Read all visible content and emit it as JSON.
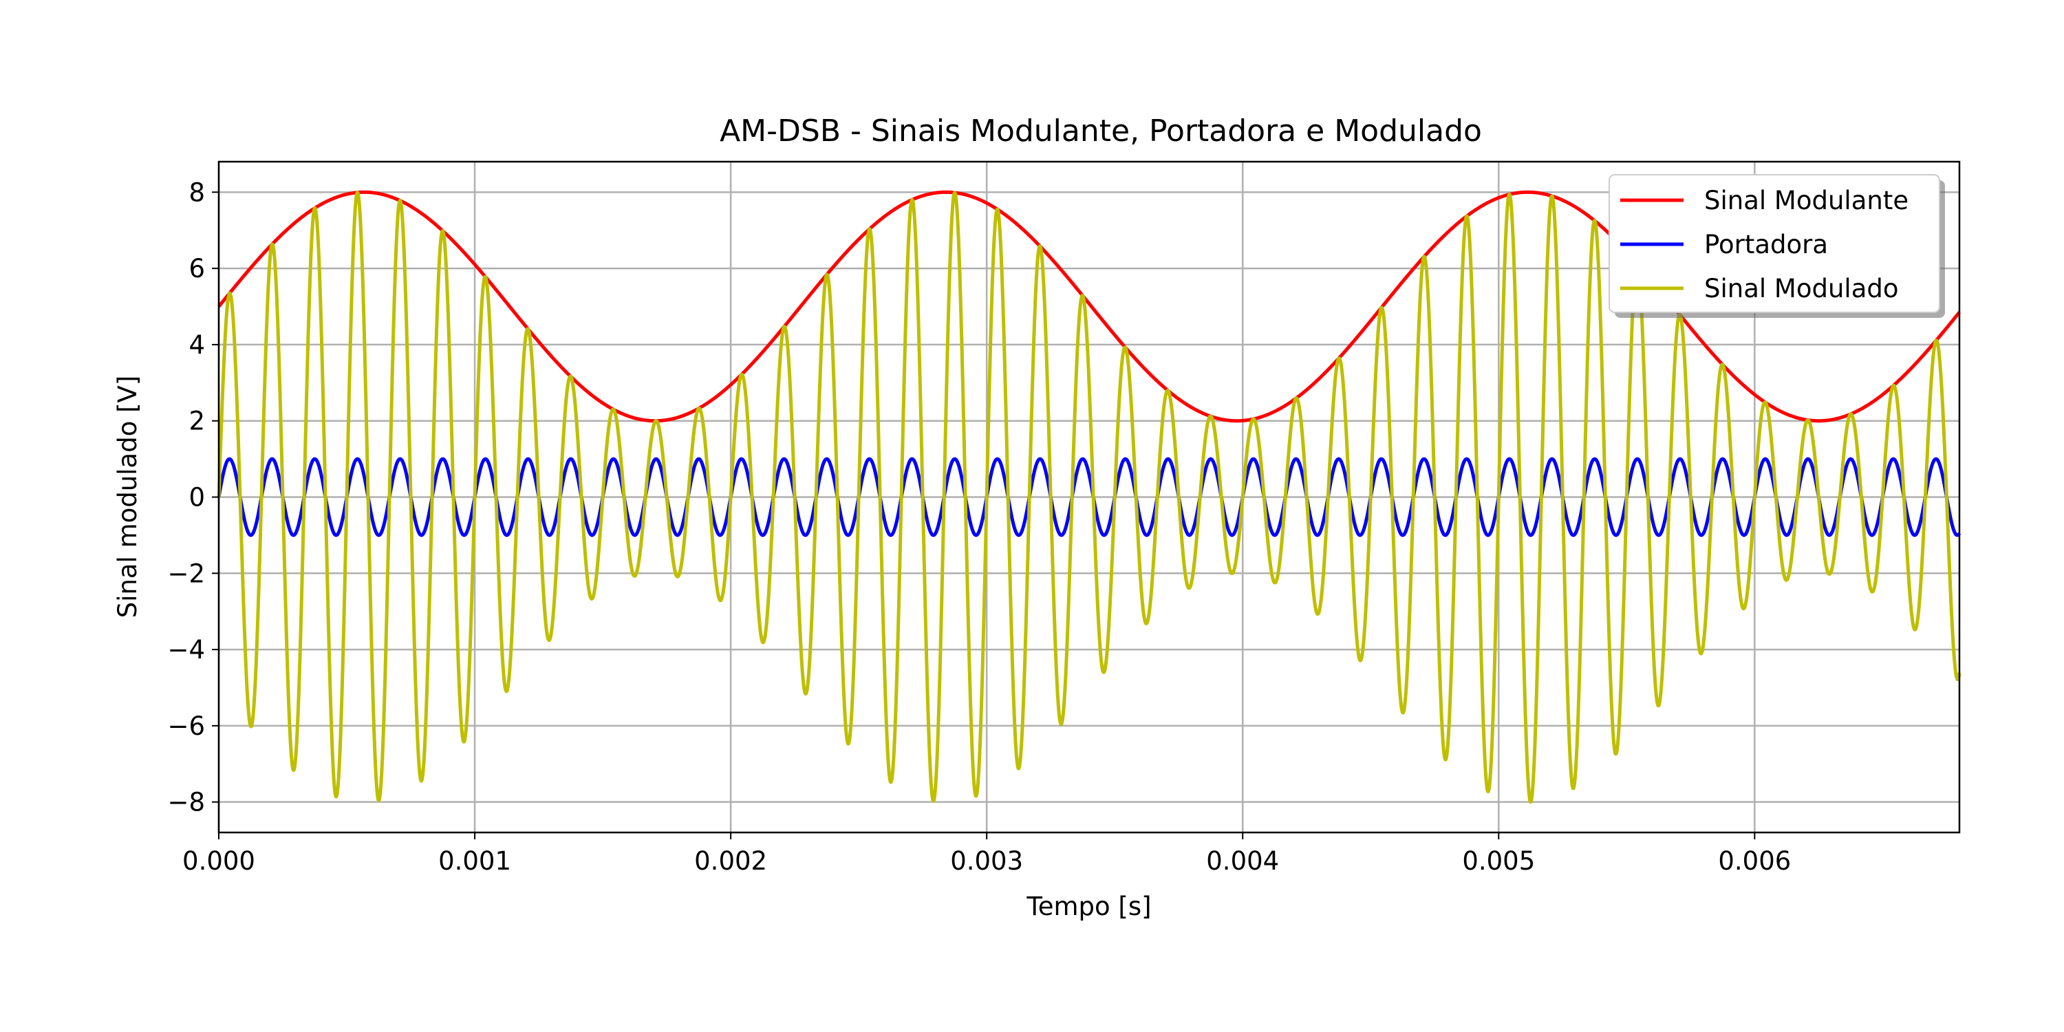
{
  "chart_data": {
    "type": "line",
    "title": "AM-DSB - Sinais Modulante, Portadora e Modulado",
    "xlabel": "Tempo [s]",
    "ylabel": "Sinal modulado [V]",
    "xlim": [
      0,
      0.0068
    ],
    "ylim": [
      -8.8,
      8.8
    ],
    "x_ticks": [
      0.0,
      0.001,
      0.002,
      0.003,
      0.004,
      0.005,
      0.006
    ],
    "x_tick_labels": [
      "0.000",
      "0.001",
      "0.002",
      "0.003",
      "0.004",
      "0.005",
      "0.006"
    ],
    "y_ticks": [
      -8,
      -6,
      -4,
      -2,
      0,
      2,
      4,
      6,
      8
    ],
    "y_tick_labels": [
      "−8",
      "−6",
      "−4",
      "−2",
      "0",
      "2",
      "4",
      "6",
      "8"
    ],
    "grid": true,
    "legend_position": "top-right",
    "series": [
      {
        "name": "Sinal Modulante",
        "color": "#ff0000",
        "equation": "5 + 3*sin(2*pi*440*t)",
        "offset": 5,
        "amplitude": 3,
        "frequency_hz": 440
      },
      {
        "name": "Portadora",
        "color": "#0000ff",
        "equation": "sin(2*pi*6000*t)",
        "amplitude": 1,
        "frequency_hz": 6000
      },
      {
        "name": "Sinal Modulado",
        "color": "#bfbf00",
        "equation": "(5 + 3*sin(2*pi*440*t)) * sin(2*pi*6000*t)",
        "offset": 5,
        "amplitude": 3,
        "modulating_frequency_hz": 440,
        "carrier_frequency_hz": 6000
      }
    ]
  }
}
